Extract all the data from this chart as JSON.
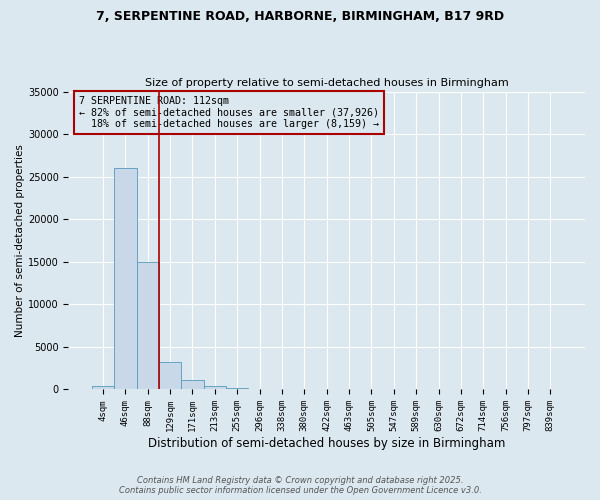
{
  "title": "7, SERPENTINE ROAD, HARBORNE, BIRMINGHAM, B17 9RD",
  "subtitle": "Size of property relative to semi-detached houses in Birmingham",
  "xlabel": "Distribution of semi-detached houses by size in Birmingham",
  "ylabel": "Number of semi-detached properties",
  "bin_labels": [
    "4sqm",
    "46sqm",
    "88sqm",
    "129sqm",
    "171sqm",
    "213sqm",
    "255sqm",
    "296sqm",
    "338sqm",
    "380sqm",
    "422sqm",
    "463sqm",
    "505sqm",
    "547sqm",
    "589sqm",
    "630sqm",
    "672sqm",
    "714sqm",
    "756sqm",
    "797sqm",
    "839sqm"
  ],
  "bar_heights": [
    400,
    26000,
    15000,
    3200,
    1100,
    400,
    200,
    100,
    0,
    0,
    0,
    0,
    0,
    0,
    0,
    0,
    0,
    0,
    0,
    0,
    0
  ],
  "bar_color": "#c8d8e8",
  "bar_edge_color": "#5599bb",
  "red_line_x": 2.5,
  "annotation_title": "7 SERPENTINE ROAD: 112sqm",
  "annotation_line1": "← 82% of semi-detached houses are smaller (37,926)",
  "annotation_line2": "  18% of semi-detached houses are larger (8,159) →",
  "annotation_color": "#aa0000",
  "ylim": [
    0,
    35000
  ],
  "yticks": [
    0,
    5000,
    10000,
    15000,
    20000,
    25000,
    30000,
    35000
  ],
  "background_color": "#dce8f0",
  "grid_color": "#ffffff",
  "footer_line1": "Contains HM Land Registry data © Crown copyright and database right 2025.",
  "footer_line2": "Contains public sector information licensed under the Open Government Licence v3.0."
}
